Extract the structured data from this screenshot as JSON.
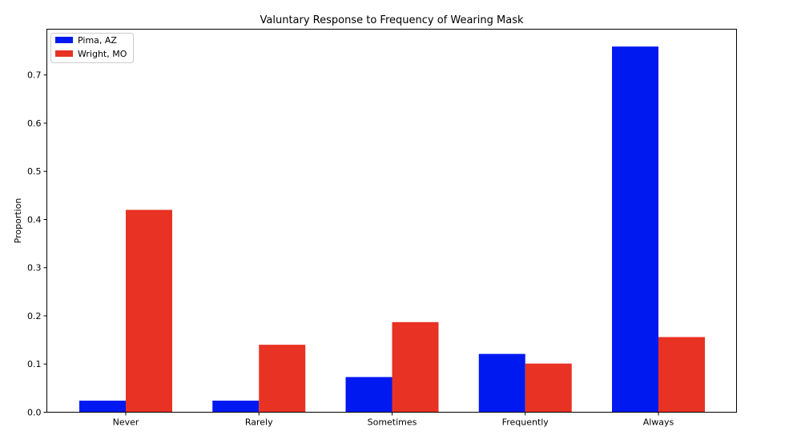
{
  "chart_data": {
    "type": "bar",
    "title": "Valuntary Response to Frequency of Wearing Mask",
    "xlabel": "",
    "ylabel": "Proportion",
    "categories": [
      "Never",
      "Rarely",
      "Sometimes",
      "Frequently",
      "Always"
    ],
    "series": [
      {
        "name": "Pima, AZ",
        "color": "#0019f0",
        "values": [
          0.024,
          0.024,
          0.073,
          0.121,
          0.759
        ]
      },
      {
        "name": "Wright, MO",
        "color": "#e83223",
        "values": [
          0.42,
          0.14,
          0.187,
          0.101,
          0.156
        ]
      }
    ],
    "ylim": [
      0,
      0.795
    ],
    "yticks": [
      0.0,
      0.1,
      0.2,
      0.3,
      0.4,
      0.5,
      0.6,
      0.7
    ],
    "ytick_labels": [
      "0.0",
      "0.1",
      "0.2",
      "0.3",
      "0.4",
      "0.5",
      "0.6",
      "0.7"
    ],
    "legend_position": "upper-left",
    "grid": false
  }
}
